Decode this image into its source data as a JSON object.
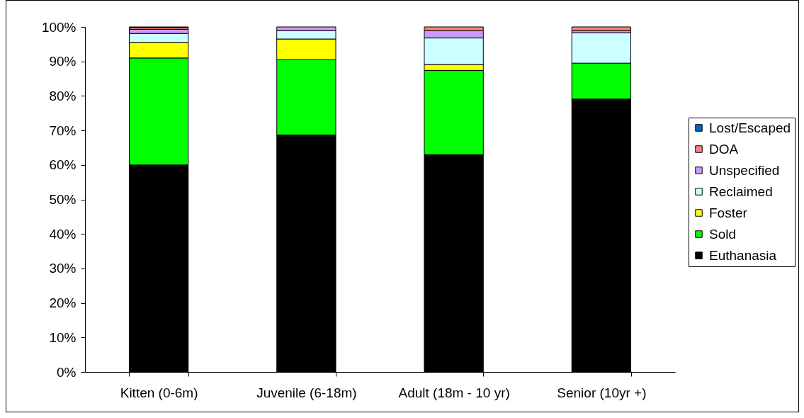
{
  "chart_data": {
    "type": "bar",
    "stacked": true,
    "legend": "right",
    "categories": [
      "Kitten (0-6m)",
      "Juvenile (6-18m)",
      "Adult (18m - 10 yr)",
      "Senior (10yr +)"
    ],
    "series": [
      {
        "name": "Euthanasia",
        "color": "#000000",
        "values": [
          60.0,
          68.7,
          63.0,
          79.1
        ]
      },
      {
        "name": "Sold",
        "color": "#00ff00",
        "values": [
          31.0,
          21.8,
          24.4,
          10.4
        ]
      },
      {
        "name": "Foster",
        "color": "#ffff00",
        "values": [
          4.5,
          6.0,
          1.7,
          null
        ]
      },
      {
        "name": "Reclaimed",
        "color": "#ccffff",
        "values": [
          2.6,
          2.4,
          7.7,
          8.8
        ]
      },
      {
        "name": "Unspecified",
        "color": "#cc99ff",
        "values": [
          1.2,
          1.1,
          2.1,
          0.6
        ]
      },
      {
        "name": "DOA",
        "color": "#ff8080",
        "values": [
          0.5,
          null,
          1.1,
          1.1
        ]
      },
      {
        "name": "Lost/Escaped",
        "color": "#0066cc",
        "values": [
          0.2,
          null,
          null,
          null
        ]
      }
    ],
    "ylim": [
      0,
      100
    ],
    "yticks": [
      {
        "value": 0,
        "label": "0%"
      },
      {
        "value": 10,
        "label": "10%"
      },
      {
        "value": 20,
        "label": "20%"
      },
      {
        "value": 30,
        "label": "30%"
      },
      {
        "value": 40,
        "label": "40%"
      },
      {
        "value": 50,
        "label": "50%"
      },
      {
        "value": 60,
        "label": "60%"
      },
      {
        "value": 70,
        "label": "70%"
      },
      {
        "value": 80,
        "label": "80%"
      },
      {
        "value": 90,
        "label": "90%"
      },
      {
        "value": 100,
        "label": "100%"
      }
    ]
  }
}
